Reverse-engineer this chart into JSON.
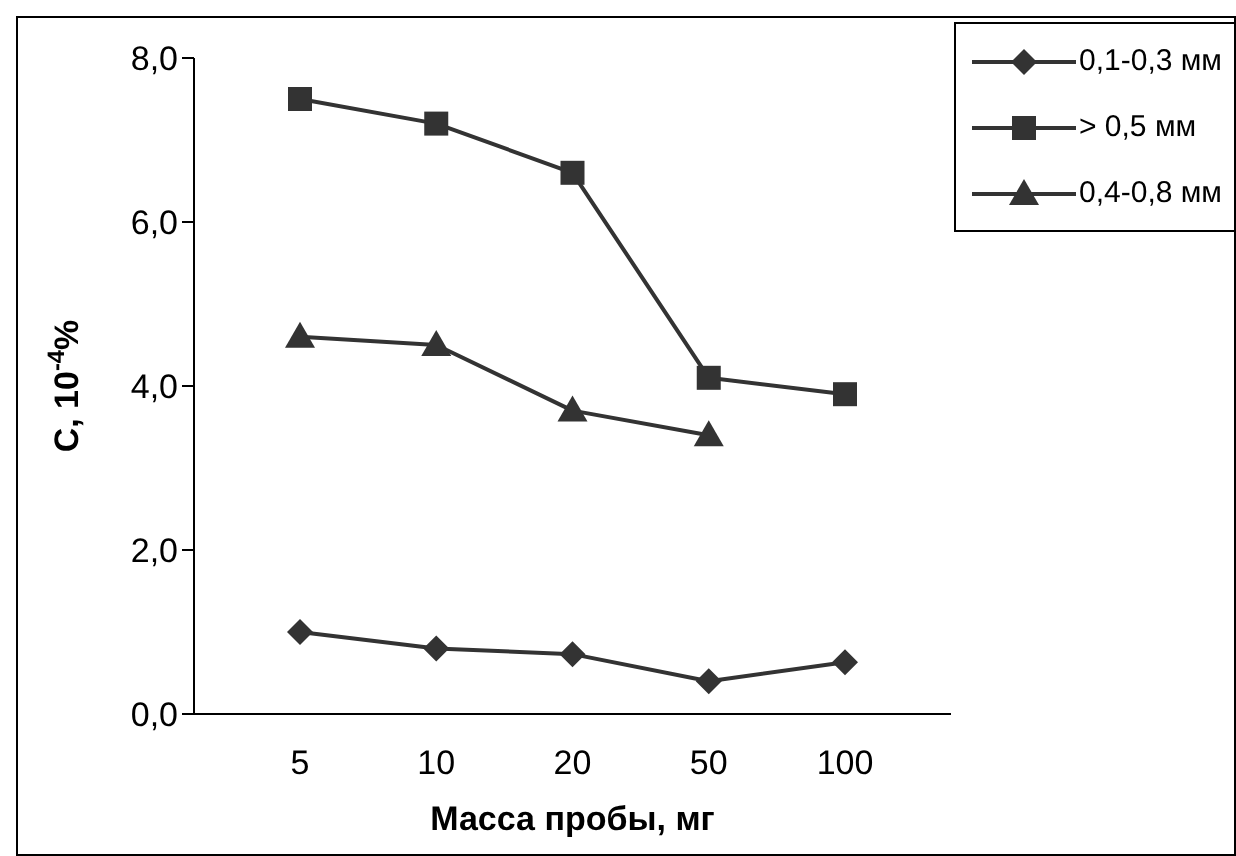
{
  "chart_data": {
    "type": "line",
    "xlabel": "Масса пробы, мг",
    "ylabel": "C, 10$^{-4}$%",
    "categories": [
      "5",
      "10",
      "20",
      "50",
      "100"
    ],
    "series": [
      {
        "name": "0,1-0,3 мм",
        "color": "#333333",
        "marker": "diamond",
        "values": [
          1.0,
          0.8,
          0.73,
          0.4,
          0.63
        ]
      },
      {
        "name": "> 0,5 мм",
        "color": "#333333",
        "marker": "square",
        "values": [
          7.5,
          7.2,
          6.6,
          4.1,
          3.9
        ]
      },
      {
        "name": "0,4-0,8 мм",
        "color": "#333333",
        "marker": "triangle",
        "values": [
          4.6,
          4.5,
          3.7,
          3.4,
          null
        ]
      }
    ],
    "ylim": [
      0,
      8
    ],
    "yticks": [
      {
        "value": 0,
        "label": "0,0"
      },
      {
        "value": 2,
        "label": "2,0"
      },
      {
        "value": 4,
        "label": "4,0"
      },
      {
        "value": 6,
        "label": "6,0"
      },
      {
        "value": 8,
        "label": "8,0"
      }
    ],
    "grid": false,
    "legend": "top right",
    "line_style": "solid"
  }
}
